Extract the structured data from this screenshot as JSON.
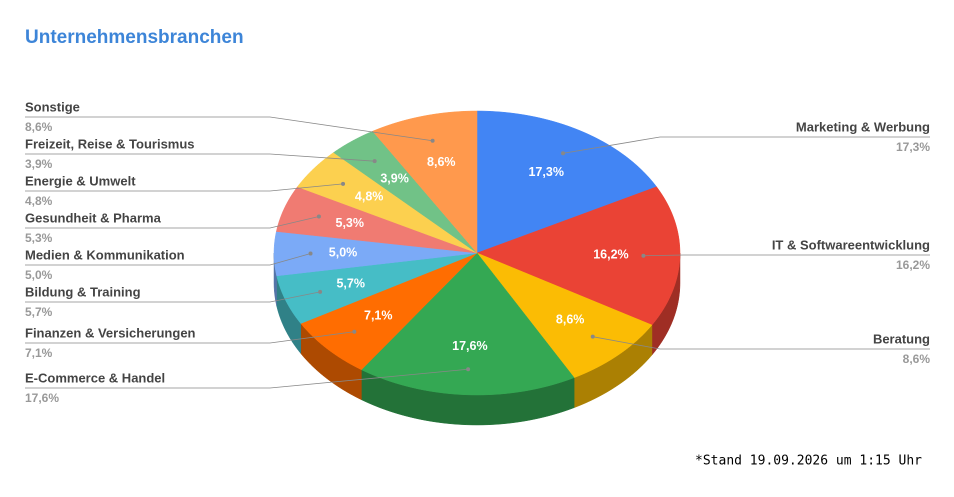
{
  "chart_data": {
    "type": "pie",
    "title": "Unternehmensbranchen",
    "categories": [
      "Marketing & Werbung",
      "IT & Softwareentwicklung",
      "Beratung",
      "E-Commerce & Handel",
      "Finanzen & Versicherungen",
      "Bildung & Training",
      "Medien & Kommunikation",
      "Gesundheit & Pharma",
      "Energie & Umwelt",
      "Freizeit, Reise & Tourismus",
      "Sonstige"
    ],
    "values": [
      17.3,
      16.2,
      8.6,
      17.6,
      7.1,
      5.7,
      5.0,
      5.3,
      4.8,
      3.9,
      8.6
    ],
    "value_labels": [
      "17,3%",
      "16,2%",
      "8,6%",
      "17,6%",
      "7,1%",
      "5,7%",
      "5,0%",
      "5,3%",
      "4,8%",
      "3,9%",
      "8,6%"
    ],
    "colors": [
      "#4285f4",
      "#ea4335",
      "#fbbc04",
      "#34a853",
      "#ff6d01",
      "#46bdc6",
      "#7baaf7",
      "#f07b72",
      "#fcd04f",
      "#71c287",
      "#ff994d"
    ],
    "footnote": "*Stand 19.09.2026 um 1:15 Uhr"
  }
}
